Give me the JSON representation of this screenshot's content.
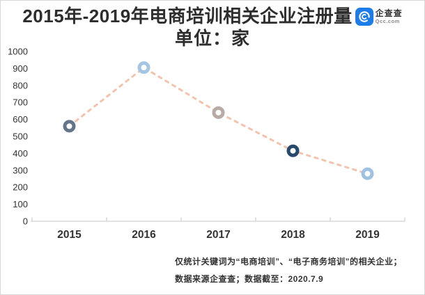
{
  "page": {
    "title_line1": "2015年-2019年电商培训相关企业注册量",
    "title_line2": "单位：家"
  },
  "logo": {
    "name": "企查查",
    "domain": "Qcc.com",
    "brand_color": "#1d7de8"
  },
  "chart_data": {
    "type": "line",
    "title": "2015年-2019年电商培训相关企业注册量",
    "subtitle": "单位：家",
    "ylabel": "",
    "xlabel": "",
    "categories": [
      "2015",
      "2016",
      "2017",
      "2018",
      "2019"
    ],
    "values": [
      560,
      905,
      640,
      415,
      280
    ],
    "ylim": [
      0,
      1000
    ],
    "ytick_step": 100,
    "grid": false,
    "legend": "none",
    "line_style": "dashed",
    "line_color": "#f4c3ad",
    "point_fill": "#ffffff",
    "point_colors": [
      "#64758a",
      "#a5c5e5",
      "#b8aba6",
      "#27496d",
      "#9fc2e2"
    ],
    "axis_color": "#d9d9d9",
    "label_color": "#333333"
  },
  "footer": {
    "line1": "仅统计关键词为“电商培训”、“电子商务培训”的相关企业；",
    "line2": "数据来源企查查；数据截至：2020.7.9"
  }
}
